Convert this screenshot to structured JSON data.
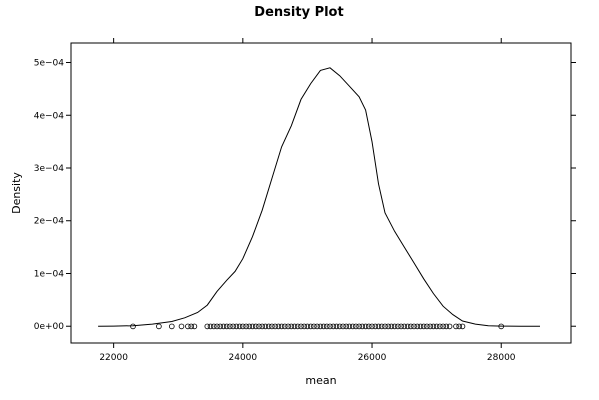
{
  "chart_data": {
    "type": "line",
    "title": "Density Plot",
    "xlabel": "mean",
    "ylabel": "Density",
    "xlim": [
      21340,
      29080
    ],
    "ylim": [
      -3.18e-05,
      0.000537
    ],
    "grid": false,
    "legend": "none",
    "x_ticks": [
      {
        "value": 22000,
        "label": "22000"
      },
      {
        "value": 24000,
        "label": "24000"
      },
      {
        "value": 26000,
        "label": "26000"
      },
      {
        "value": 28000,
        "label": "28000"
      }
    ],
    "y_ticks": [
      {
        "value": 0,
        "label": "0e+00"
      },
      {
        "value": 0.0001,
        "label": "1e−04"
      },
      {
        "value": 0.0002,
        "label": "2e−04"
      },
      {
        "value": 0.0003,
        "label": "3e−04"
      },
      {
        "value": 0.0004,
        "label": "4e−04"
      },
      {
        "value": 0.0005,
        "label": "5e−04"
      }
    ],
    "series": [
      {
        "x": [
          21760,
          22000,
          22300,
          22600,
          22900,
          23100,
          23300,
          23450,
          23600,
          23750,
          23880,
          24000,
          24150,
          24300,
          24450,
          24600,
          24750,
          24900,
          25050,
          25200,
          25350,
          25500,
          25650,
          25800,
          25900,
          26000,
          26100,
          26200,
          26350,
          26500,
          26650,
          26800,
          26950,
          27100,
          27250,
          27400,
          27600,
          27800,
          28000,
          28300,
          28600
        ],
        "y": [
          0.0,
          3e-07,
          1e-06,
          4e-06,
          9e-06,
          1.6e-05,
          2.6e-05,
          4e-05,
          6.6e-05,
          8.7e-05,
          0.000104,
          0.000128,
          0.00017,
          0.00022,
          0.00028,
          0.00034,
          0.00038,
          0.00043,
          0.00046,
          0.000485,
          0.00049,
          0.000475,
          0.000455,
          0.000435,
          0.00041,
          0.00035,
          0.00027,
          0.000215,
          0.00018,
          0.00015,
          0.00012,
          9e-05,
          6.2e-05,
          3.8e-05,
          2.2e-05,
          1e-05,
          4e-06,
          1e-06,
          3e-07,
          0.0,
          0.0
        ]
      }
    ],
    "rug": {
      "y": -3e-07,
      "x": [
        22300,
        22700,
        22900,
        23050,
        23150,
        23200,
        23250,
        23450,
        23500,
        23550,
        23600,
        23650,
        23700,
        23750,
        23800,
        23850,
        23900,
        23950,
        24000,
        24050,
        24100,
        24150,
        24200,
        24250,
        24300,
        24350,
        24400,
        24450,
        24500,
        24550,
        24600,
        24650,
        24700,
        24750,
        24800,
        24850,
        24900,
        24950,
        25000,
        25050,
        25100,
        25150,
        25200,
        25250,
        25300,
        25350,
        25400,
        25450,
        25500,
        25550,
        25600,
        25650,
        25700,
        25750,
        25800,
        25850,
        25900,
        25950,
        26000,
        26050,
        26100,
        26150,
        26200,
        26250,
        26300,
        26350,
        26400,
        26450,
        26500,
        26550,
        26600,
        26650,
        26700,
        26750,
        26800,
        26850,
        26900,
        26950,
        27000,
        27050,
        27100,
        27150,
        27200,
        27300,
        27350,
        27400,
        28000
      ]
    }
  }
}
